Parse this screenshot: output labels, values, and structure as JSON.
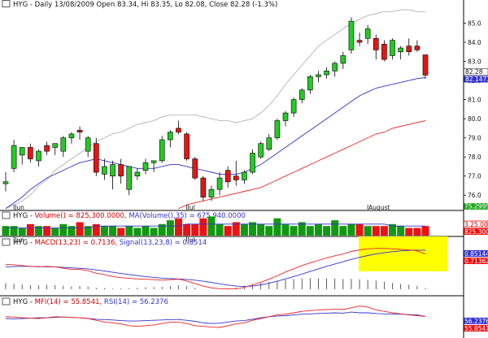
{
  "chart_data": {
    "type": "candlestick",
    "symbol": "HYG",
    "title": "HYG - Daily 13/08/2009 Open 83.34, Hi 83.35, Lo 82.08, Close 82.28 (-1.3%)",
    "colors": {
      "up": "#22cc22",
      "down": "#ee1111",
      "ma_short": "#3333cc",
      "ma_long": "#ee2222",
      "envelope": "#aaaaaa",
      "highlight": "#ffff00"
    },
    "x_labels": [
      {
        "index": 1,
        "label": "Jun"
      },
      {
        "index": 22,
        "label": "Jul"
      },
      {
        "index": 44,
        "label": "August"
      }
    ],
    "price_panel": {
      "ylim": [
        75.5,
        85.7
      ],
      "ticks": [
        76.0,
        77.0,
        78.0,
        79.0,
        80.0,
        81.0,
        82.0,
        83.0,
        84.0,
        85.0
      ],
      "tick_labels": [
        "76.0",
        "77.0",
        "78.0",
        "79.0",
        "80.0",
        "81.0",
        "82.0",
        "83.0",
        "84.0",
        "85.0"
      ],
      "last_close_label": "82.28",
      "ma_label": "82.1473",
      "bottom_label": "75.2995",
      "candles": [
        {
          "o": 76.6,
          "h": 77.2,
          "l": 76.2,
          "c": 76.7
        },
        {
          "o": 77.4,
          "h": 78.9,
          "l": 77.2,
          "c": 78.6
        },
        {
          "o": 78.1,
          "h": 78.5,
          "l": 77.6,
          "c": 78.5
        },
        {
          "o": 78.5,
          "h": 78.7,
          "l": 77.7,
          "c": 77.9
        },
        {
          "o": 77.8,
          "h": 78.4,
          "l": 77.5,
          "c": 78.3
        },
        {
          "o": 78.6,
          "h": 78.8,
          "l": 78.1,
          "c": 78.3
        },
        {
          "o": 78.5,
          "h": 78.7,
          "l": 78.1,
          "c": 78.7
        },
        {
          "o": 78.3,
          "h": 79.1,
          "l": 78.0,
          "c": 79.0
        },
        {
          "o": 79.0,
          "h": 79.3,
          "l": 78.7,
          "c": 79.2
        },
        {
          "o": 79.4,
          "h": 79.6,
          "l": 78.9,
          "c": 79.3
        },
        {
          "o": 78.3,
          "h": 79.1,
          "l": 78.0,
          "c": 79.0
        },
        {
          "o": 78.7,
          "h": 79.0,
          "l": 77.0,
          "c": 77.2
        },
        {
          "o": 77.1,
          "h": 77.9,
          "l": 76.8,
          "c": 77.5
        },
        {
          "o": 77.0,
          "h": 77.8,
          "l": 76.3,
          "c": 77.6
        },
        {
          "o": 77.6,
          "h": 77.9,
          "l": 76.6,
          "c": 77.0
        },
        {
          "o": 76.3,
          "h": 77.5,
          "l": 76.0,
          "c": 77.5
        },
        {
          "o": 77.0,
          "h": 77.4,
          "l": 76.8,
          "c": 77.2
        },
        {
          "o": 77.3,
          "h": 77.9,
          "l": 77.1,
          "c": 77.7
        },
        {
          "o": 77.7,
          "h": 77.8,
          "l": 77.2,
          "c": 77.8
        },
        {
          "o": 77.8,
          "h": 79.1,
          "l": 77.7,
          "c": 78.9
        },
        {
          "o": 78.9,
          "h": 79.4,
          "l": 78.5,
          "c": 79.3
        },
        {
          "o": 79.5,
          "h": 79.9,
          "l": 79.2,
          "c": 79.3
        },
        {
          "o": 79.2,
          "h": 79.3,
          "l": 77.8,
          "c": 77.9
        },
        {
          "o": 77.9,
          "h": 78.0,
          "l": 76.8,
          "c": 76.9
        },
        {
          "o": 76.9,
          "h": 77.0,
          "l": 75.7,
          "c": 75.9
        },
        {
          "o": 75.9,
          "h": 76.5,
          "l": 75.7,
          "c": 76.3
        },
        {
          "o": 76.3,
          "h": 77.2,
          "l": 76.0,
          "c": 76.9
        },
        {
          "o": 77.3,
          "h": 77.5,
          "l": 76.4,
          "c": 76.7
        },
        {
          "o": 77.0,
          "h": 77.8,
          "l": 76.5,
          "c": 76.8
        },
        {
          "o": 76.8,
          "h": 77.3,
          "l": 76.6,
          "c": 77.2
        },
        {
          "o": 77.2,
          "h": 78.4,
          "l": 77.1,
          "c": 78.2
        },
        {
          "o": 78.0,
          "h": 78.8,
          "l": 77.9,
          "c": 78.7
        },
        {
          "o": 78.4,
          "h": 79.2,
          "l": 78.3,
          "c": 79.0
        },
        {
          "o": 79.0,
          "h": 80.0,
          "l": 78.9,
          "c": 79.9
        },
        {
          "o": 79.9,
          "h": 80.4,
          "l": 79.6,
          "c": 80.3
        },
        {
          "o": 80.3,
          "h": 81.1,
          "l": 80.1,
          "c": 81.0
        },
        {
          "o": 81.0,
          "h": 81.6,
          "l": 80.8,
          "c": 81.5
        },
        {
          "o": 81.5,
          "h": 82.3,
          "l": 81.3,
          "c": 82.2
        },
        {
          "o": 82.2,
          "h": 82.5,
          "l": 81.9,
          "c": 82.3
        },
        {
          "o": 82.3,
          "h": 82.7,
          "l": 82.1,
          "c": 82.5
        },
        {
          "o": 82.5,
          "h": 83.0,
          "l": 82.2,
          "c": 82.9
        },
        {
          "o": 82.9,
          "h": 83.5,
          "l": 82.6,
          "c": 83.3
        },
        {
          "o": 83.6,
          "h": 85.3,
          "l": 83.4,
          "c": 85.1
        },
        {
          "o": 84.1,
          "h": 84.5,
          "l": 83.8,
          "c": 84.0
        },
        {
          "o": 84.2,
          "h": 84.9,
          "l": 83.9,
          "c": 84.7
        },
        {
          "o": 84.2,
          "h": 84.4,
          "l": 83.1,
          "c": 83.6
        },
        {
          "o": 83.9,
          "h": 84.1,
          "l": 83.0,
          "c": 83.1
        },
        {
          "o": 83.3,
          "h": 84.2,
          "l": 83.1,
          "c": 84.1
        },
        {
          "o": 83.5,
          "h": 83.8,
          "l": 83.1,
          "c": 83.7
        },
        {
          "o": 83.8,
          "h": 84.2,
          "l": 83.3,
          "c": 83.5
        },
        {
          "o": 83.8,
          "h": 84.1,
          "l": 83.5,
          "c": 83.6
        },
        {
          "o": 83.34,
          "h": 83.35,
          "l": 82.08,
          "c": 82.28
        }
      ],
      "ma_short": [
        75.3,
        75.6,
        75.9,
        76.3,
        76.6,
        76.9,
        77.1,
        77.3,
        77.5,
        77.7,
        77.8,
        77.9,
        77.8,
        77.7,
        77.6,
        77.5,
        77.4,
        77.4,
        77.4,
        77.5,
        77.6,
        77.6,
        77.5,
        77.4,
        77.3,
        77.2,
        77.1,
        77.1,
        77.1,
        77.2,
        77.4,
        77.6,
        77.9,
        78.2,
        78.5,
        78.8,
        79.1,
        79.4,
        79.7,
        80.0,
        80.3,
        80.6,
        80.9,
        81.2,
        81.4,
        81.6,
        81.7,
        81.8,
        81.9,
        82.0,
        82.1,
        82.15
      ],
      "ma_long": [
        null,
        null,
        null,
        null,
        null,
        null,
        null,
        null,
        null,
        null,
        null,
        null,
        null,
        null,
        null,
        null,
        null,
        null,
        null,
        null,
        null,
        75.3,
        75.5,
        75.6,
        75.7,
        75.8,
        75.9,
        76.0,
        76.1,
        76.2,
        76.3,
        76.4,
        76.6,
        76.8,
        77.0,
        77.2,
        77.4,
        77.6,
        77.8,
        78.0,
        78.2,
        78.4,
        78.6,
        78.8,
        79.0,
        79.2,
        79.3,
        79.5,
        79.6,
        79.7,
        79.8,
        79.9
      ],
      "envelope": [
        75.3,
        75.5,
        75.7,
        76.0,
        76.5,
        76.8,
        77.3,
        77.6,
        77.9,
        78.2,
        78.5,
        78.8,
        79.0,
        79.2,
        79.3,
        79.5,
        79.7,
        79.8,
        79.9,
        80.1,
        80.2,
        80.2,
        80.2,
        80.2,
        80.1,
        80.0,
        79.9,
        79.9,
        79.8,
        79.9,
        80.0,
        80.3,
        80.7,
        81.2,
        81.8,
        82.3,
        82.8,
        83.3,
        83.8,
        84.1,
        84.4,
        84.7,
        85.0,
        85.2,
        85.4,
        85.5,
        85.6,
        85.6,
        85.7,
        85.7,
        85.6,
        85.6
      ]
    },
    "volume_panel": {
      "label_prefix": "HYG - ",
      "title_volume": "Volume() = 825,300.0000,",
      "title_ma": "MA(Volume(),35) = 675,940.0000",
      "right_labels": [
        "3.25.00",
        "825,300"
      ],
      "values": [
        5,
        5,
        4,
        6,
        5,
        5,
        4,
        6,
        5,
        7,
        5,
        6,
        5,
        5,
        4,
        5,
        4,
        5,
        4,
        6,
        8,
        9,
        6,
        6,
        9,
        10,
        6,
        5,
        7,
        6,
        7,
        6,
        5,
        9,
        6,
        5,
        7,
        5,
        6,
        5,
        8,
        5,
        6,
        6,
        5,
        5,
        5,
        6,
        5,
        4,
        4,
        5
      ],
      "ma": [
        4,
        4,
        4,
        4,
        4,
        4,
        4,
        4,
        4,
        4,
        4,
        5,
        5,
        5,
        5,
        5,
        5,
        5,
        5,
        5,
        5,
        5,
        6,
        6,
        6,
        6,
        6,
        6,
        6,
        6,
        6,
        6,
        6,
        6,
        6,
        6,
        6,
        6,
        6,
        6,
        6,
        6,
        6,
        6,
        6,
        6,
        6,
        5,
        5,
        5,
        5,
        5
      ]
    },
    "macd_panel": {
      "label_prefix": "HYG - ",
      "title_macd": "MACD(13,23) = 0.7136,",
      "title_signal": "Signal(13,23,8) = 0.8514",
      "right_labels": [
        "0.85144",
        "0.71362"
      ],
      "macd": [
        0.3,
        0.28,
        0.25,
        0.22,
        0.2,
        0.22,
        0.2,
        0.15,
        0.1,
        0.1,
        0.05,
        -0.05,
        -0.1,
        -0.18,
        -0.22,
        -0.25,
        -0.27,
        -0.28,
        -0.3,
        -0.32,
        -0.3,
        -0.28,
        -0.35,
        -0.45,
        -0.55,
        -0.62,
        -0.65,
        -0.66,
        -0.66,
        -0.6,
        -0.5,
        -0.4,
        -0.28,
        -0.15,
        0.0,
        0.12,
        0.25,
        0.36,
        0.45,
        0.55,
        0.63,
        0.7,
        0.8,
        0.86,
        0.9,
        0.92,
        0.92,
        0.9,
        0.88,
        0.86,
        0.82,
        0.71
      ],
      "signal": [
        0.2,
        0.21,
        0.22,
        0.22,
        0.21,
        0.2,
        0.2,
        0.18,
        0.16,
        0.14,
        0.12,
        0.08,
        0.04,
        -0.01,
        -0.06,
        -0.1,
        -0.14,
        -0.18,
        -0.21,
        -0.24,
        -0.26,
        -0.27,
        -0.29,
        -0.32,
        -0.36,
        -0.41,
        -0.46,
        -0.51,
        -0.55,
        -0.57,
        -0.55,
        -0.5,
        -0.44,
        -0.36,
        -0.27,
        -0.18,
        -0.08,
        0.02,
        0.12,
        0.22,
        0.31,
        0.4,
        0.49,
        0.57,
        0.64,
        0.7,
        0.75,
        0.79,
        0.82,
        0.84,
        0.85,
        0.85
      ]
    },
    "mfi_panel": {
      "label_prefix": "HYG - ",
      "title_mfi": "MFI(14) = 55.8541,",
      "title_rsi": "RSI(14) = 56.2376",
      "right_labels": [
        "56.2376",
        "55.8541"
      ],
      "ylim": [
        0,
        100
      ],
      "mfi": [
        55,
        54,
        52,
        51,
        50,
        52,
        55,
        54,
        53,
        52,
        50,
        45,
        40,
        38,
        35,
        30,
        28,
        30,
        32,
        36,
        40,
        40,
        36,
        30,
        28,
        26,
        25,
        30,
        35,
        38,
        45,
        50,
        55,
        60,
        62,
        66,
        70,
        72,
        74,
        75,
        76,
        75,
        80,
        85,
        82,
        74,
        70,
        66,
        63,
        60,
        58,
        55.85
      ],
      "rsi": [
        50,
        49,
        50,
        51,
        52,
        52,
        53,
        54,
        53,
        52,
        50,
        48,
        47,
        46,
        44,
        43,
        43,
        44,
        45,
        46,
        47,
        47,
        45,
        42,
        38,
        36,
        37,
        40,
        43,
        44,
        48,
        52,
        55,
        57,
        58,
        60,
        62,
        63,
        64,
        65,
        66,
        65,
        68,
        66,
        66,
        64,
        63,
        62,
        62,
        61,
        60,
        56.24
      ]
    }
  }
}
